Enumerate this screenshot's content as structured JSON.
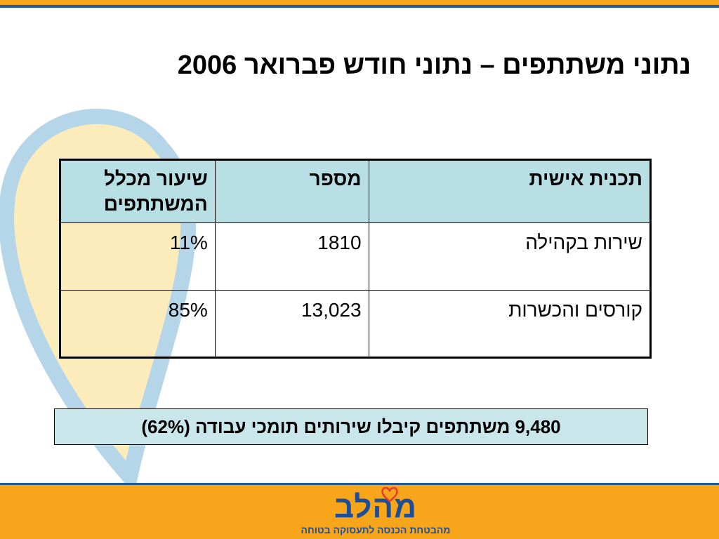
{
  "slide": {
    "title": "נתוני משתתפים – נתוני חודש פברואר 2006"
  },
  "table": {
    "headers": {
      "plan": "תכנית אישית",
      "number": "מספר",
      "rate": "שיעור מכלל המשתתפים"
    },
    "rows": [
      {
        "plan": "שירות בקהילה",
        "number": "1810",
        "rate": "11%"
      },
      {
        "plan": "קורסים והכשרות",
        "number": "13,023",
        "rate": "85%"
      }
    ]
  },
  "summary": {
    "text": "9,480 משתתפים קיבלו שירותים תומכי עבודה (62%)"
  },
  "logo": {
    "name": "מהלב",
    "tagline": "מהבטחת הכנסה לתעסוקה בטוחה"
  },
  "colors": {
    "orange": "#F7A51B",
    "blue": "#1F5A96",
    "header_fill": "#B8DFE4",
    "summary_fill": "#C9E6EA",
    "heart_fill": "#FCE9B0",
    "heart_edge": "#A9CFE6",
    "logo_blue": "#1F4E96"
  }
}
